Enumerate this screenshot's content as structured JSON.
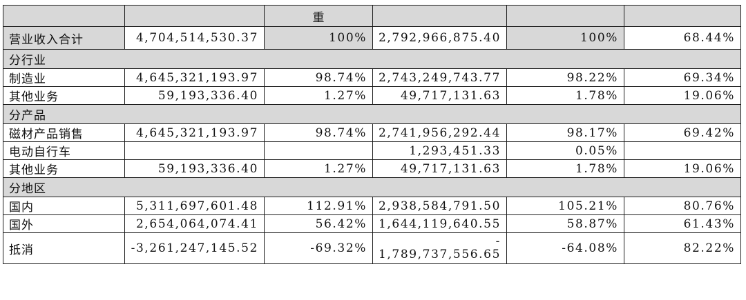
{
  "header": {
    "cells": [
      "",
      "",
      "重",
      "",
      "",
      ""
    ]
  },
  "rows": [
    {
      "label": "营业收入合计",
      "c1": "4,704,514,530.37",
      "c2": "100%",
      "c3": "2,792,966,875.40",
      "c4": "100%",
      "c5": "68.44%"
    },
    {
      "section": "分行业"
    },
    {
      "label": "制造业",
      "c1": "4,645,321,193.97",
      "c2": "98.74%",
      "c3": "2,743,249,743.77",
      "c4": "98.22%",
      "c5": "69.34%"
    },
    {
      "label": "其他业务",
      "c1": "59,193,336.40",
      "c2": "1.27%",
      "c3": "49,717,131.63",
      "c4": "1.78%",
      "c5": "19.06%"
    },
    {
      "section": "分产品"
    },
    {
      "label": "磁材产品销售",
      "c1": "4,645,321,193.97",
      "c2": "98.74%",
      "c3": "2,741,956,292.44",
      "c4": "98.17%",
      "c5": "69.42%"
    },
    {
      "label": "电动自行车",
      "c1": "",
      "c2": "",
      "c3": "1,293,451.33",
      "c4": "0.05%",
      "c5": ""
    },
    {
      "label": "其他业务",
      "c1": "59,193,336.40",
      "c2": "1.27%",
      "c3": "49,717,131.63",
      "c4": "1.78%",
      "c5": "19.06%"
    },
    {
      "section": "分地区"
    },
    {
      "label": "国内",
      "c1": "5,311,697,601.48",
      "c2": "112.91%",
      "c3": "2,938,584,791.50",
      "c4": "105.21%",
      "c5": "80.76%"
    },
    {
      "label": "国外",
      "c1": "2,654,064,074.41",
      "c2": "56.42%",
      "c3": "1,644,119,640.55",
      "c4": "58.87%",
      "c5": "61.43%"
    },
    {
      "label": "抵消",
      "c1": "-3,261,247,145.52",
      "c2": "-69.32%",
      "c3_line1": "-",
      "c3_line2": "1,789,737,556.65",
      "c4": "-64.08%",
      "c5": "82.22%"
    }
  ]
}
